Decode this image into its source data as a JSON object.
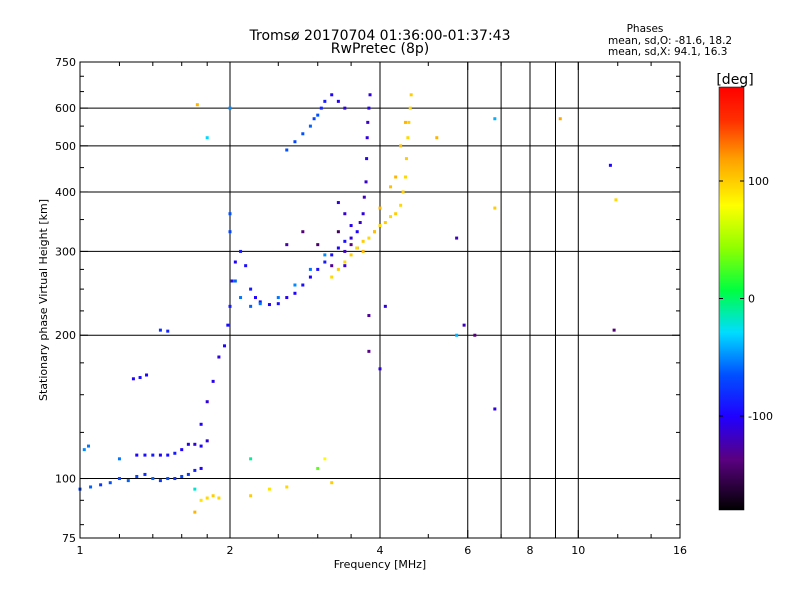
{
  "header": {
    "title": "Tromsø 20170704 01:36:00-01:37:43",
    "subtitle": "RwPretec (8p)"
  },
  "phases": {
    "heading": "Phases",
    "line_o": "mean, sd,O: -81.6, 18.2",
    "line_x": "mean, sd,X:  94.1, 16.3"
  },
  "colorbar": {
    "title": "[deg]",
    "ticks": [
      {
        "value": 100,
        "label": "100"
      },
      {
        "value": 0,
        "label": "0"
      },
      {
        "value": -100,
        "label": "-100"
      }
    ],
    "range": [
      -180,
      180
    ],
    "colormap": "rainbow (black-purple-blue-cyan-green-yellow-red)"
  },
  "chart_data": {
    "type": "scatter",
    "xlabel": "Frequency [MHz]",
    "ylabel": "Stationary phase Virtual Height [km]",
    "xscale": "log",
    "yscale": "log",
    "xlim": [
      1,
      16
    ],
    "ylim": [
      75,
      750
    ],
    "grid": true,
    "xticks": [
      {
        "value": 1,
        "label": "1"
      },
      {
        "value": 2,
        "label": "2"
      },
      {
        "value": 4,
        "label": "4"
      },
      {
        "value": 6,
        "label": "6"
      },
      {
        "value": 8,
        "label": "8"
      },
      {
        "value": 10,
        "label": "10"
      },
      {
        "value": 16,
        "label": "16"
      }
    ],
    "xgrid": [
      2,
      4,
      6,
      7,
      8,
      9,
      10
    ],
    "yticks": [
      {
        "value": 75,
        "label": "75"
      },
      {
        "value": 100,
        "label": "100"
      },
      {
        "value": 200,
        "label": "200"
      },
      {
        "value": 300,
        "label": "300"
      },
      {
        "value": 400,
        "label": "400"
      },
      {
        "value": 500,
        "label": "500"
      },
      {
        "value": 600,
        "label": "600"
      },
      {
        "value": 750,
        "label": "750"
      }
    ],
    "ygrid": [
      100,
      200,
      300,
      400,
      500,
      600
    ],
    "color_by": "phase [deg]",
    "series": [
      {
        "points": [
          [
            1.0,
            95,
            -70
          ],
          [
            1.05,
            96,
            -60
          ],
          [
            1.1,
            97,
            -75
          ],
          [
            1.15,
            98,
            -65
          ],
          [
            1.2,
            100,
            -70
          ],
          [
            1.25,
            99,
            -60
          ],
          [
            1.3,
            101,
            -70
          ],
          [
            1.35,
            102,
            -80
          ],
          [
            1.4,
            100,
            -60
          ],
          [
            1.45,
            99,
            -75
          ],
          [
            1.5,
            100,
            -65
          ],
          [
            1.55,
            100,
            -80
          ],
          [
            1.6,
            101,
            -70
          ],
          [
            1.65,
            102,
            -75
          ],
          [
            1.7,
            104,
            -85
          ],
          [
            1.75,
            105,
            -100
          ],
          [
            1.02,
            115,
            -50
          ],
          [
            1.04,
            117,
            -55
          ],
          [
            1.2,
            110,
            -55
          ],
          [
            1.3,
            112,
            -100
          ],
          [
            1.35,
            112,
            -95
          ],
          [
            1.4,
            112,
            -90
          ],
          [
            1.45,
            112,
            -100
          ],
          [
            1.5,
            112,
            -95
          ],
          [
            1.55,
            113,
            -90
          ],
          [
            1.6,
            115,
            -100
          ],
          [
            1.65,
            118,
            -105
          ],
          [
            1.7,
            118,
            -110
          ],
          [
            1.75,
            117,
            -100
          ],
          [
            1.8,
            120,
            -110
          ],
          [
            1.28,
            162,
            -100
          ],
          [
            1.32,
            163,
            -95
          ],
          [
            1.36,
            165,
            -100
          ],
          [
            1.45,
            205,
            -80
          ],
          [
            1.5,
            204,
            -85
          ],
          [
            1.75,
            130,
            -100
          ],
          [
            1.8,
            145,
            -110
          ],
          [
            1.85,
            160,
            -105
          ],
          [
            1.9,
            180,
            -110
          ],
          [
            1.95,
            190,
            -100
          ],
          [
            1.98,
            210,
            -95
          ],
          [
            2.0,
            230,
            -90
          ],
          [
            2.02,
            260,
            -95
          ],
          [
            2.05,
            285,
            -100
          ],
          [
            2.1,
            300,
            -90
          ],
          [
            2.15,
            280,
            -95
          ],
          [
            2.2,
            250,
            -90
          ],
          [
            2.25,
            240,
            -100
          ],
          [
            2.3,
            235,
            -95
          ],
          [
            2.4,
            232,
            -100
          ],
          [
            2.5,
            233,
            -95
          ],
          [
            2.6,
            240,
            -105
          ],
          [
            2.7,
            245,
            -100
          ],
          [
            2.8,
            255,
            -95
          ],
          [
            2.9,
            265,
            -100
          ],
          [
            3.0,
            275,
            -95
          ],
          [
            3.1,
            285,
            -90
          ],
          [
            3.2,
            295,
            -95
          ],
          [
            3.3,
            305,
            -100
          ],
          [
            3.4,
            315,
            -95
          ],
          [
            3.5,
            320,
            -110
          ],
          [
            3.6,
            330,
            -100
          ],
          [
            3.65,
            345,
            -115
          ],
          [
            3.7,
            360,
            -110
          ],
          [
            3.72,
            390,
            -120
          ],
          [
            3.75,
            420,
            -115
          ],
          [
            3.76,
            470,
            -105
          ],
          [
            3.77,
            520,
            -110
          ],
          [
            3.78,
            560,
            -115
          ],
          [
            3.8,
            600,
            -105
          ],
          [
            3.82,
            640,
            -110
          ],
          [
            2.05,
            260,
            -60
          ],
          [
            2.1,
            240,
            -55
          ],
          [
            2.2,
            230,
            -60
          ],
          [
            2.3,
            233,
            -55
          ],
          [
            2.5,
            240,
            -55
          ],
          [
            2.7,
            255,
            -50
          ],
          [
            2.9,
            275,
            -55
          ],
          [
            3.1,
            295,
            -50
          ],
          [
            2.0,
            330,
            -70
          ],
          [
            2.0,
            360,
            -65
          ],
          [
            2.6,
            490,
            -65
          ],
          [
            2.7,
            510,
            -70
          ],
          [
            2.8,
            530,
            -65
          ],
          [
            2.9,
            550,
            -60
          ],
          [
            2.95,
            570,
            -70
          ],
          [
            3.0,
            580,
            -65
          ],
          [
            3.05,
            600,
            -85
          ],
          [
            3.1,
            620,
            -90
          ],
          [
            3.2,
            640,
            -100
          ],
          [
            3.3,
            620,
            -105
          ],
          [
            3.4,
            600,
            -110
          ],
          [
            3.3,
            380,
            -110
          ],
          [
            3.4,
            360,
            -115
          ],
          [
            3.5,
            340,
            -105
          ],
          [
            3.3,
            330,
            -150
          ],
          [
            3.4,
            300,
            -120
          ],
          [
            3.5,
            310,
            -135
          ],
          [
            3.6,
            305,
            -125
          ],
          [
            2.8,
            330,
            -140
          ],
          [
            3.0,
            310,
            -145
          ],
          [
            3.2,
            280,
            -130
          ],
          [
            2.6,
            310,
            -125
          ],
          [
            3.4,
            280,
            -115
          ],
          [
            3.8,
            220,
            -130
          ],
          [
            3.8,
            185,
            -135
          ],
          [
            4.0,
            170,
            -110
          ],
          [
            4.1,
            230,
            -110
          ],
          [
            5.7,
            320,
            -120
          ],
          [
            5.9,
            210,
            -120
          ],
          [
            6.2,
            200,
            -140
          ],
          [
            6.8,
            140,
            -110
          ],
          [
            11.8,
            205,
            -140
          ],
          [
            11.6,
            455,
            -100
          ],
          [
            3.2,
            265,
            95
          ],
          [
            3.3,
            275,
            100
          ],
          [
            3.4,
            285,
            95
          ],
          [
            3.5,
            295,
            100
          ],
          [
            3.6,
            305,
            95
          ],
          [
            3.7,
            315,
            100
          ],
          [
            3.8,
            320,
            95
          ],
          [
            3.9,
            330,
            100
          ],
          [
            4.0,
            340,
            95
          ],
          [
            4.1,
            345,
            100
          ],
          [
            4.2,
            355,
            95
          ],
          [
            4.3,
            360,
            100
          ],
          [
            4.4,
            375,
            95
          ],
          [
            4.45,
            400,
            100
          ],
          [
            4.5,
            430,
            95
          ],
          [
            4.52,
            470,
            100
          ],
          [
            4.55,
            520,
            95
          ],
          [
            4.57,
            560,
            100
          ],
          [
            4.6,
            600,
            95
          ],
          [
            4.62,
            640,
            100
          ],
          [
            3.7,
            300,
            110
          ],
          [
            3.9,
            330,
            105
          ],
          [
            4.0,
            370,
            110
          ],
          [
            4.2,
            410,
            105
          ],
          [
            4.3,
            430,
            110
          ],
          [
            4.4,
            500,
            105
          ],
          [
            4.5,
            560,
            110
          ],
          [
            1.75,
            90,
            90
          ],
          [
            1.8,
            91,
            95
          ],
          [
            1.85,
            92,
            100
          ],
          [
            1.9,
            91,
            95
          ],
          [
            2.2,
            92,
            100
          ],
          [
            2.4,
            95,
            90
          ],
          [
            2.6,
            96,
            95
          ],
          [
            1.7,
            85,
            110
          ],
          [
            3.1,
            110,
            80
          ],
          [
            3.2,
            98,
            100
          ],
          [
            5.2,
            520,
            110
          ],
          [
            6.8,
            370,
            100
          ],
          [
            9.2,
            570,
            115
          ],
          [
            11.9,
            385,
            95
          ],
          [
            1.72,
            610,
            110
          ],
          [
            6.8,
            570,
            -40
          ],
          [
            1.7,
            95,
            -20
          ],
          [
            2.2,
            110,
            -10
          ],
          [
            3.0,
            105,
            30
          ],
          [
            5.7,
            200,
            -40
          ],
          [
            1.8,
            520,
            -30
          ],
          [
            2.0,
            600,
            -50
          ]
        ]
      }
    ]
  }
}
